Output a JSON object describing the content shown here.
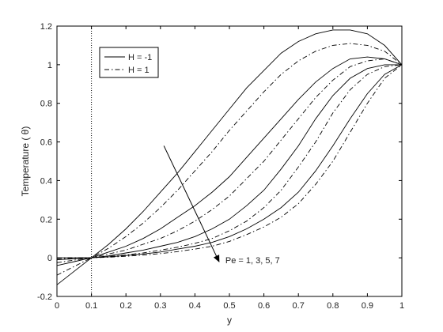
{
  "chart_data": {
    "type": "line",
    "title": "",
    "xlabel": "y",
    "ylabel": "Temperature ( θ)",
    "xlim": [
      0,
      1
    ],
    "ylim": [
      -0.2,
      1.2
    ],
    "x_ticks": [
      0,
      0.1,
      0.2,
      0.3,
      0.4,
      0.5,
      0.6,
      0.7,
      0.8,
      0.9,
      1
    ],
    "x_tick_labels": [
      "0",
      "0.1",
      "0.2",
      "0.3",
      "0.4",
      "0.5",
      "0.6",
      "0.7",
      "0.8",
      "0.9",
      "1"
    ],
    "y_ticks": [
      -0.2,
      0,
      0.2,
      0.4,
      0.6,
      0.8,
      1,
      1.2
    ],
    "y_tick_labels": [
      "-0.2",
      "0",
      "0.2",
      "0.4",
      "0.6",
      "0.8",
      "1",
      "1.2"
    ],
    "grid": false,
    "legend_position": "top-left",
    "legend": [
      {
        "label": "H = -1",
        "style": "solid"
      },
      {
        "label": "H = 1",
        "style": "dashdot"
      }
    ],
    "reference_line": {
      "x": 0.1,
      "style": "dotted"
    },
    "annotation": {
      "text": "Pe = 1, 3, 5, 7",
      "arrow_from": [
        0.31,
        0.58
      ],
      "arrow_to": [
        0.47,
        -0.02
      ]
    },
    "series": [
      {
        "style": "solid",
        "x": [
          0,
          0.05,
          0.1,
          0.15,
          0.2,
          0.25,
          0.3,
          0.35,
          0.4,
          0.45,
          0.5,
          0.55,
          0.6,
          0.65,
          0.7,
          0.75,
          0.8,
          0.85,
          0.9,
          0.95,
          1
        ],
        "y": [
          -0.14,
          -0.07,
          0,
          0.07,
          0.15,
          0.24,
          0.34,
          0.44,
          0.55,
          0.66,
          0.77,
          0.88,
          0.97,
          1.06,
          1.12,
          1.16,
          1.18,
          1.18,
          1.16,
          1.1,
          1
        ]
      },
      {
        "style": "solid",
        "x": [
          0,
          0.05,
          0.1,
          0.15,
          0.2,
          0.25,
          0.3,
          0.35,
          0.4,
          0.45,
          0.5,
          0.55,
          0.6,
          0.65,
          0.7,
          0.75,
          0.8,
          0.85,
          0.9,
          0.95,
          1
        ],
        "y": [
          -0.04,
          -0.02,
          0,
          0.03,
          0.06,
          0.1,
          0.15,
          0.21,
          0.27,
          0.34,
          0.42,
          0.52,
          0.62,
          0.72,
          0.82,
          0.91,
          0.98,
          1.03,
          1.04,
          1.03,
          1
        ]
      },
      {
        "style": "solid",
        "x": [
          0,
          0.05,
          0.1,
          0.15,
          0.2,
          0.25,
          0.3,
          0.35,
          0.4,
          0.45,
          0.5,
          0.55,
          0.6,
          0.65,
          0.7,
          0.75,
          0.8,
          0.85,
          0.9,
          0.95,
          1
        ],
        "y": [
          -0.01,
          -0.005,
          0,
          0.01,
          0.025,
          0.04,
          0.06,
          0.08,
          0.11,
          0.15,
          0.2,
          0.27,
          0.35,
          0.46,
          0.58,
          0.72,
          0.84,
          0.93,
          0.98,
          1,
          1
        ]
      },
      {
        "style": "solid",
        "x": [
          0,
          0.05,
          0.1,
          0.15,
          0.2,
          0.25,
          0.3,
          0.35,
          0.4,
          0.45,
          0.5,
          0.55,
          0.6,
          0.65,
          0.7,
          0.75,
          0.8,
          0.85,
          0.9,
          0.95,
          1
        ],
        "y": [
          0,
          0,
          0,
          0.005,
          0.012,
          0.02,
          0.03,
          0.045,
          0.06,
          0.08,
          0.11,
          0.15,
          0.2,
          0.26,
          0.34,
          0.45,
          0.58,
          0.72,
          0.85,
          0.95,
          1
        ]
      },
      {
        "style": "dashdot",
        "x": [
          0,
          0.05,
          0.1,
          0.15,
          0.2,
          0.25,
          0.3,
          0.35,
          0.4,
          0.45,
          0.5,
          0.55,
          0.6,
          0.65,
          0.7,
          0.75,
          0.8,
          0.85,
          0.9,
          0.95,
          1
        ],
        "y": [
          -0.09,
          -0.045,
          0,
          0.05,
          0.11,
          0.18,
          0.26,
          0.35,
          0.45,
          0.55,
          0.66,
          0.76,
          0.86,
          0.95,
          1.02,
          1.07,
          1.1,
          1.11,
          1.1,
          1.07,
          1
        ]
      },
      {
        "style": "dashdot",
        "x": [
          0,
          0.05,
          0.1,
          0.15,
          0.2,
          0.25,
          0.3,
          0.35,
          0.4,
          0.45,
          0.5,
          0.55,
          0.6,
          0.65,
          0.7,
          0.75,
          0.8,
          0.85,
          0.9,
          0.95,
          1
        ],
        "y": [
          -0.025,
          -0.012,
          0,
          0.02,
          0.04,
          0.07,
          0.1,
          0.14,
          0.19,
          0.25,
          0.32,
          0.41,
          0.5,
          0.61,
          0.72,
          0.83,
          0.92,
          0.99,
          1.02,
          1.03,
          1
        ]
      },
      {
        "style": "dashdot",
        "x": [
          0,
          0.05,
          0.1,
          0.15,
          0.2,
          0.25,
          0.3,
          0.35,
          0.4,
          0.45,
          0.5,
          0.55,
          0.6,
          0.65,
          0.7,
          0.75,
          0.8,
          0.85,
          0.9,
          0.95,
          1
        ],
        "y": [
          -0.005,
          -0.002,
          0,
          0.007,
          0.015,
          0.025,
          0.04,
          0.055,
          0.075,
          0.1,
          0.14,
          0.19,
          0.26,
          0.35,
          0.47,
          0.6,
          0.75,
          0.87,
          0.95,
          0.99,
          1
        ]
      },
      {
        "style": "dashdot",
        "x": [
          0,
          0.05,
          0.1,
          0.15,
          0.2,
          0.25,
          0.3,
          0.35,
          0.4,
          0.45,
          0.5,
          0.55,
          0.6,
          0.65,
          0.7,
          0.75,
          0.8,
          0.85,
          0.9,
          0.95,
          1
        ],
        "y": [
          0,
          0,
          0,
          0.003,
          0.008,
          0.014,
          0.022,
          0.032,
          0.045,
          0.06,
          0.085,
          0.12,
          0.16,
          0.21,
          0.28,
          0.38,
          0.5,
          0.65,
          0.8,
          0.93,
          1
        ]
      }
    ]
  }
}
